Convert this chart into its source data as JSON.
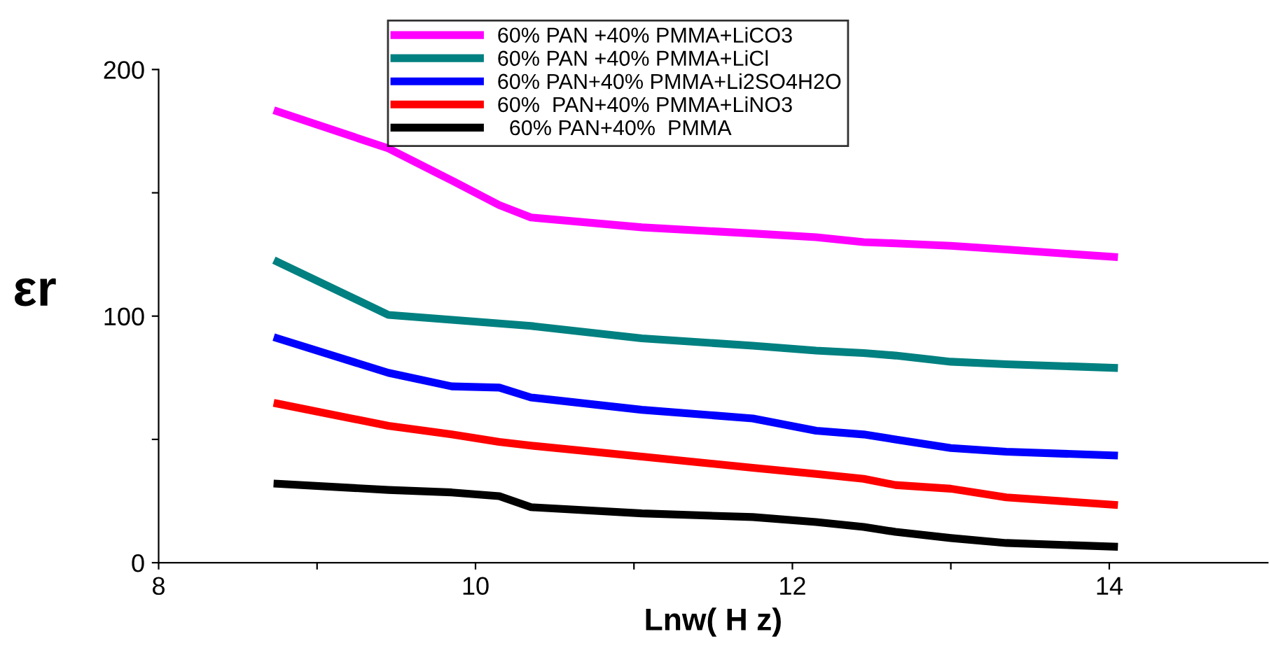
{
  "chart_data": {
    "type": "line",
    "xlabel": "Lnw( H z)",
    "ylabel": "εr",
    "x": [
      8.75,
      9.45,
      9.85,
      10.15,
      10.35,
      11.05,
      11.75,
      12.15,
      12.45,
      12.65,
      13.0,
      13.35,
      14.03
    ],
    "series": [
      {
        "name": "60% PAN +40% PMMA+LiCO3",
        "color": "#ff00ff",
        "values": [
          183,
          168,
          155,
          145,
          140,
          136,
          133.5,
          132,
          130,
          129.5,
          128.5,
          127,
          124
        ]
      },
      {
        "name": "60% PAN +40% PMMA+LiCl",
        "color": "#008080",
        "values": [
          122,
          100.5,
          98.5,
          97,
          96,
          91,
          88,
          86,
          85,
          84,
          81.5,
          80.5,
          79
        ]
      },
      {
        "name": "60% PAN+40% PMMA+Li2SO4H2O",
        "color": "#0000ff",
        "values": [
          91,
          77,
          71.5,
          71,
          67,
          62,
          58.5,
          53.5,
          52,
          50,
          46.5,
          45,
          43.5
        ]
      },
      {
        "name": "60%  PAN+40% PMMA+LiNO3",
        "color": "#ff0000",
        "values": [
          64.5,
          55.5,
          52,
          49,
          47.5,
          43,
          38.5,
          36,
          34,
          31.5,
          30,
          26.5,
          23.5
        ]
      },
      {
        "name": "  60% PAN+40%  PMMA",
        "color": "#000000",
        "values": [
          32,
          29.5,
          28.5,
          27,
          22.5,
          20,
          18.5,
          16.5,
          14.5,
          12.5,
          10,
          8,
          6.5
        ]
      }
    ],
    "xlim": [
      8,
      15
    ],
    "ylim": [
      0,
      200
    ],
    "xticks": [
      8,
      {
        "value": 9,
        "label": null
      },
      10,
      {
        "value": 11,
        "label": null
      },
      12,
      {
        "value": 13,
        "label": null
      },
      14
    ],
    "yticks": [
      0,
      {
        "value": 50,
        "label": null
      },
      100,
      {
        "value": 150,
        "label": null
      },
      200
    ],
    "grid": false,
    "legend": "top",
    "line_style": "solid",
    "marker": "none"
  }
}
